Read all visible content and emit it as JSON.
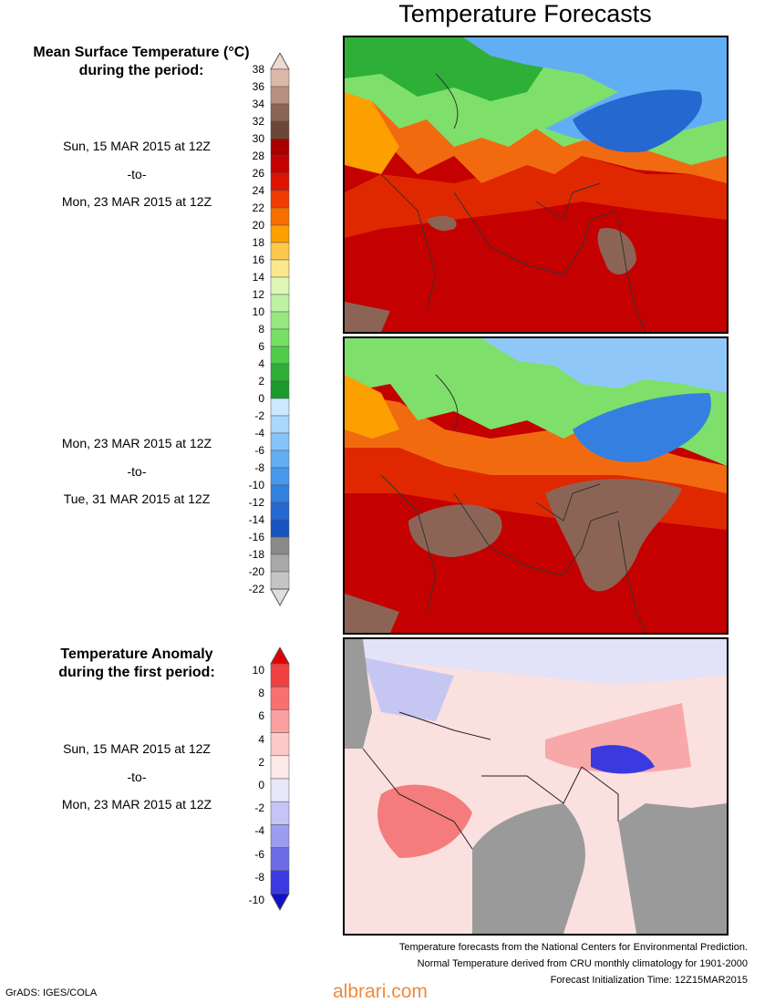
{
  "title": "Temperature Forecasts",
  "mean_section": {
    "heading_line1": "Mean Surface Temperature (°C)",
    "heading_line2": "during the period:",
    "period1": {
      "start": "Sun, 15 MAR 2015 at 12Z",
      "sep": "-to-",
      "end": "Mon, 23 MAR 2015 at 12Z"
    },
    "period2": {
      "start": "Mon, 23 MAR 2015 at 12Z",
      "sep": "-to-",
      "end": "Tue, 31 MAR 2015 at 12Z"
    }
  },
  "anomaly_section": {
    "heading_line1": "Temperature Anomaly",
    "heading_line2": "during the first period:",
    "period": {
      "start": "Sun, 15 MAR 2015 at 12Z",
      "sep": "-to-",
      "end": "Mon, 23 MAR 2015 at 12Z"
    }
  },
  "temp_scale": {
    "labels": [
      "38",
      "36",
      "34",
      "32",
      "30",
      "28",
      "26",
      "24",
      "22",
      "20",
      "18",
      "16",
      "14",
      "12",
      "10",
      "8",
      "6",
      "4",
      "2",
      "0",
      "-2",
      "-4",
      "-6",
      "-8",
      "-10",
      "-12",
      "-14",
      "-16",
      "-18",
      "-20",
      "-22"
    ],
    "colors": [
      "#f0d8d0",
      "#dcb8a8",
      "#b89080",
      "#8c6456",
      "#6c4638",
      "#a80000",
      "#c40000",
      "#dc1400",
      "#f03c00",
      "#f86e00",
      "#fca000",
      "#fcc84c",
      "#fce88c",
      "#ddf7b6",
      "#bff1a2",
      "#98e882",
      "#78df65",
      "#4fcc4a",
      "#2eb038",
      "#1c9a2c",
      "#cce8ff",
      "#a8d8fc",
      "#84c4f8",
      "#62aef4",
      "#4898ec",
      "#3480e0",
      "#2468d0",
      "#1854c0",
      "#8a8a8a",
      "#a8a8a8",
      "#c4c4c4",
      "#dedede"
    ]
  },
  "anom_scale": {
    "labels": [
      "10",
      "8",
      "6",
      "4",
      "2",
      "0",
      "-2",
      "-4",
      "-6",
      "-8",
      "-10"
    ],
    "colors": [
      "#e00000",
      "#f04040",
      "#f87070",
      "#faa0a0",
      "#fcc8c8",
      "#fde8e8",
      "#e8e8fa",
      "#c4c4f6",
      "#9c9cf0",
      "#6c6ce6",
      "#3a3ae0",
      "#1010c8"
    ]
  },
  "footer": {
    "line1": "Temperature forecasts from the National Centers for Environmental Prediction.",
    "line2": "Normal Temperature derived from CRU monthly climatology for 1901-2000",
    "line3": "Forecast Initialization Time: 12Z15MAR2015"
  },
  "credit": "GrADS: IGES/COLA",
  "watermark": "albrari.com"
}
